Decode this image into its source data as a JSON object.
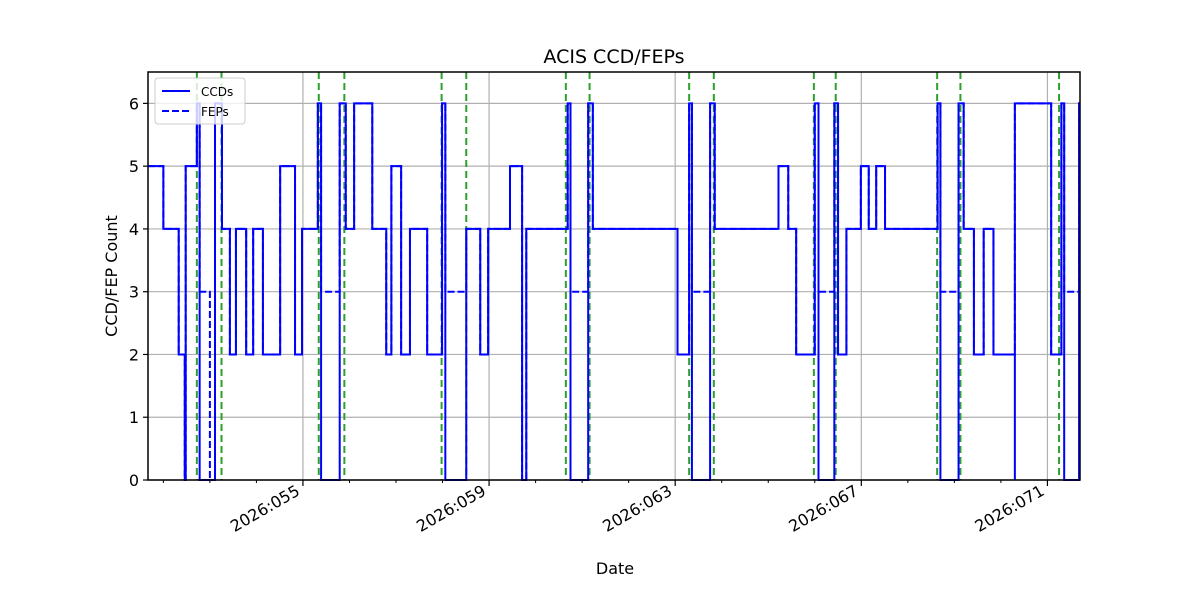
{
  "chart_data": {
    "type": "line",
    "title": "ACIS CCD/FEPs",
    "xlabel": "Date",
    "ylabel": "CCD/FEP Count",
    "xlim": [
      51.67,
      71.7
    ],
    "ylim": [
      0,
      6.5
    ],
    "grid": true,
    "legend_position": "upper left",
    "x_tick_labels": [
      "2026:055",
      "2026:059",
      "2026:063",
      "2026:067",
      "2026:071"
    ],
    "x_tick_values": [
      55,
      59,
      63,
      67,
      71
    ],
    "x_minor_tick_values": [
      52,
      53,
      54,
      56,
      57,
      58,
      60,
      61,
      62,
      64,
      65,
      66,
      68,
      69,
      70
    ],
    "y_tick_labels": [
      "0",
      "1",
      "2",
      "3",
      "4",
      "5",
      "6"
    ],
    "y_tick_values": [
      0,
      1,
      2,
      3,
      4,
      5,
      6
    ],
    "x_unit": "day of year 2026",
    "series": [
      {
        "name": "CCDs",
        "style": "solid",
        "color": "#0000ff",
        "steps": [
          [
            51.67,
            5
          ],
          [
            52.0,
            4
          ],
          [
            52.33,
            2
          ],
          [
            52.46,
            0
          ],
          [
            52.48,
            5
          ],
          [
            52.72,
            6
          ],
          [
            52.78,
            0
          ],
          [
            53.11,
            6
          ],
          [
            53.26,
            4
          ],
          [
            53.43,
            2
          ],
          [
            53.56,
            4
          ],
          [
            53.78,
            2
          ],
          [
            53.93,
            4
          ],
          [
            54.14,
            2
          ],
          [
            54.51,
            5
          ],
          [
            54.83,
            2
          ],
          [
            54.98,
            4
          ],
          [
            55.32,
            6
          ],
          [
            55.39,
            0
          ],
          [
            55.79,
            6
          ],
          [
            55.92,
            4
          ],
          [
            56.1,
            6
          ],
          [
            56.49,
            4
          ],
          [
            56.79,
            2
          ],
          [
            56.9,
            5
          ],
          [
            57.11,
            2
          ],
          [
            57.3,
            4
          ],
          [
            57.67,
            2
          ],
          [
            57.99,
            6
          ],
          [
            58.06,
            0
          ],
          [
            58.51,
            4
          ],
          [
            58.81,
            2
          ],
          [
            58.98,
            4
          ],
          [
            59.45,
            5
          ],
          [
            59.71,
            0
          ],
          [
            59.8,
            4
          ],
          [
            60.69,
            6
          ],
          [
            60.75,
            0
          ],
          [
            61.13,
            6
          ],
          [
            61.23,
            4
          ],
          [
            63.05,
            2
          ],
          [
            63.3,
            6
          ],
          [
            63.36,
            0
          ],
          [
            63.75,
            6
          ],
          [
            63.85,
            4
          ],
          [
            65.22,
            5
          ],
          [
            65.43,
            4
          ],
          [
            65.6,
            2
          ],
          [
            66.0,
            6
          ],
          [
            66.08,
            0
          ],
          [
            66.42,
            6
          ],
          [
            66.5,
            2
          ],
          [
            66.68,
            4
          ],
          [
            66.99,
            5
          ],
          [
            67.16,
            4
          ],
          [
            67.32,
            5
          ],
          [
            67.51,
            4
          ],
          [
            68.64,
            6
          ],
          [
            68.7,
            0
          ],
          [
            69.09,
            6
          ],
          [
            69.2,
            4
          ],
          [
            69.42,
            2
          ],
          [
            69.63,
            4
          ],
          [
            69.84,
            2
          ],
          [
            70.3,
            0
          ],
          [
            70.3,
            6
          ],
          [
            71.08,
            2
          ],
          [
            71.3,
            6
          ],
          [
            71.36,
            0
          ],
          [
            71.68,
            6
          ],
          [
            71.7,
            6
          ]
        ]
      },
      {
        "name": "FEPs",
        "style": "dashed",
        "color": "#0000ff",
        "steps": [
          [
            51.67,
            5
          ],
          [
            52.0,
            4
          ],
          [
            52.33,
            2
          ],
          [
            52.46,
            0
          ],
          [
            52.48,
            5
          ],
          [
            52.72,
            6
          ],
          [
            52.78,
            3
          ],
          [
            53.0,
            0
          ],
          [
            53.11,
            6
          ],
          [
            53.26,
            4
          ],
          [
            53.43,
            2
          ],
          [
            53.56,
            4
          ],
          [
            53.78,
            2
          ],
          [
            53.93,
            4
          ],
          [
            54.14,
            2
          ],
          [
            54.51,
            5
          ],
          [
            54.83,
            2
          ],
          [
            54.98,
            4
          ],
          [
            55.32,
            6
          ],
          [
            55.39,
            3
          ],
          [
            55.79,
            6
          ],
          [
            55.92,
            4
          ],
          [
            56.1,
            6
          ],
          [
            56.49,
            4
          ],
          [
            56.79,
            2
          ],
          [
            56.9,
            5
          ],
          [
            57.11,
            2
          ],
          [
            57.3,
            4
          ],
          [
            57.67,
            2
          ],
          [
            57.99,
            6
          ],
          [
            58.06,
            3
          ],
          [
            58.51,
            4
          ],
          [
            58.81,
            2
          ],
          [
            58.98,
            4
          ],
          [
            59.45,
            5
          ],
          [
            59.71,
            0
          ],
          [
            59.8,
            4
          ],
          [
            60.69,
            6
          ],
          [
            60.75,
            3
          ],
          [
            61.13,
            6
          ],
          [
            61.23,
            4
          ],
          [
            63.05,
            2
          ],
          [
            63.3,
            6
          ],
          [
            63.36,
            3
          ],
          [
            63.75,
            6
          ],
          [
            63.85,
            4
          ],
          [
            65.22,
            5
          ],
          [
            65.43,
            4
          ],
          [
            65.6,
            2
          ],
          [
            66.0,
            6
          ],
          [
            66.08,
            3
          ],
          [
            66.42,
            6
          ],
          [
            66.5,
            2
          ],
          [
            66.68,
            4
          ],
          [
            66.99,
            5
          ],
          [
            67.16,
            4
          ],
          [
            67.32,
            5
          ],
          [
            67.51,
            4
          ],
          [
            68.64,
            6
          ],
          [
            68.7,
            3
          ],
          [
            69.09,
            6
          ],
          [
            69.2,
            4
          ],
          [
            69.42,
            2
          ],
          [
            69.63,
            4
          ],
          [
            69.84,
            2
          ],
          [
            70.3,
            6
          ],
          [
            71.08,
            2
          ],
          [
            71.3,
            6
          ],
          [
            71.36,
            3
          ],
          [
            71.68,
            6
          ],
          [
            71.7,
            6
          ]
        ]
      }
    ],
    "vertical_markers": {
      "color": "#2ca02c",
      "style": "dashed",
      "x": [
        52.72,
        53.25,
        55.34,
        55.89,
        57.98,
        58.51,
        60.65,
        61.16,
        63.3,
        63.83,
        65.98,
        66.45,
        68.63,
        69.13,
        71.25
      ]
    }
  },
  "legend": {
    "items": [
      {
        "label": "CCDs",
        "style": "solid"
      },
      {
        "label": "FEPs",
        "style": "dashed"
      }
    ]
  }
}
